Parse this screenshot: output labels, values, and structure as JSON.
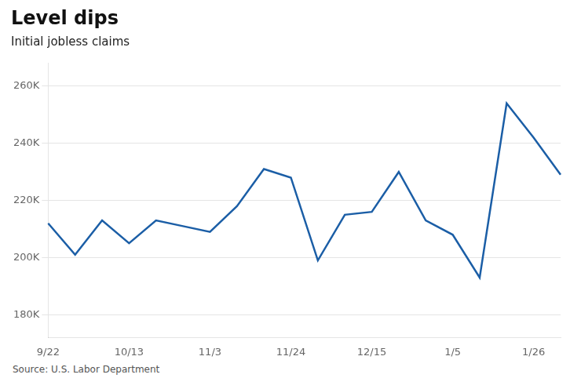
{
  "chart_data": {
    "type": "line",
    "title": "Level dips",
    "subtitle": "Initial jobless claims",
    "source": "Source: U.S. Labor Department",
    "categories": [
      "9/22",
      null,
      null,
      "10/13",
      null,
      null,
      "11/3",
      null,
      null,
      "11/24",
      null,
      null,
      "12/15",
      null,
      null,
      "1/5",
      null,
      null,
      "1/26",
      null
    ],
    "values": [
      212000,
      201000,
      213000,
      205000,
      213000,
      211000,
      209000,
      218000,
      231000,
      228000,
      199000,
      215000,
      216000,
      230000,
      213000,
      208000,
      193000,
      254000,
      242000,
      229000
    ],
    "color": "#1b5ea6",
    "ylim": [
      172000,
      268000
    ],
    "yticks": [
      {
        "value": 180000,
        "label": "180K"
      },
      {
        "value": 200000,
        "label": "200K"
      },
      {
        "value": 220000,
        "label": "220K"
      },
      {
        "value": 240000,
        "label": "240K"
      },
      {
        "value": 260000,
        "label": "260K"
      }
    ],
    "grid": "y"
  }
}
